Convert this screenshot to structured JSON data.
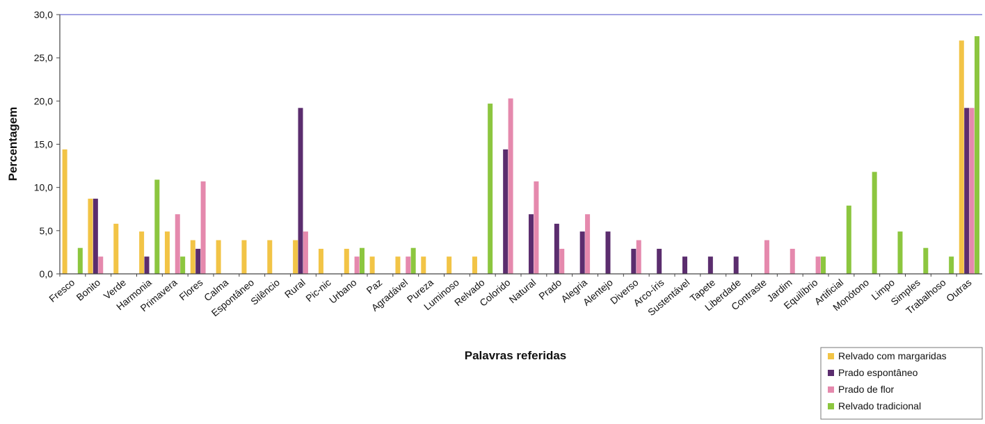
{
  "chart_data": {
    "type": "bar",
    "xlabel": "Palavras referidas",
    "ylabel": "Percentagem",
    "ylim": [
      0,
      30
    ],
    "yticks": [
      "0,0",
      "5,0",
      "10,0",
      "15,0",
      "20,0",
      "25,0",
      "30,0"
    ],
    "legend_position": "bottom-right",
    "categories": [
      "Fresco",
      "Bonito",
      "Verde",
      "Harmonia",
      "Primavera",
      "Flores",
      "Calma",
      "Espontâneo",
      "Silêncio",
      "Rural",
      "Pic-nic",
      "Urbano",
      "Paz",
      "Agradável",
      "Pureza",
      "Luminoso",
      "Relvado",
      "Colorido",
      "Natural",
      "Prado",
      "Alegria",
      "Alentejo",
      "Diverso",
      "Arco-íris",
      "Sustentável",
      "Tapete",
      "Liberdade",
      "Contraste",
      "Jardim",
      "Equilíbrio",
      "Artificial",
      "Monótono",
      "Limpo",
      "Simples",
      "Trabalhoso",
      "Outras"
    ],
    "series": [
      {
        "name": "Relvado com margaridas",
        "color": "#f2c446",
        "values": [
          14.4,
          8.7,
          5.8,
          4.9,
          4.9,
          3.9,
          3.9,
          3.9,
          3.9,
          3.9,
          2.9,
          2.9,
          2.0,
          2.0,
          2.0,
          2.0,
          2.0,
          0,
          0,
          0,
          0,
          0,
          0,
          0,
          0,
          0,
          0,
          0,
          0,
          0,
          0,
          0,
          0,
          0,
          0,
          27.0
        ]
      },
      {
        "name": "Prado espontâneo",
        "color": "#5b2d6e",
        "values": [
          0,
          8.7,
          0,
          2.0,
          0,
          2.9,
          0,
          0,
          0,
          19.2,
          0,
          0,
          0,
          0,
          0,
          0,
          0,
          14.4,
          6.9,
          5.8,
          4.9,
          4.9,
          2.9,
          2.9,
          2.0,
          2.0,
          2.0,
          0,
          0,
          0,
          0,
          0,
          0,
          0,
          0,
          19.2
        ]
      },
      {
        "name": "Prado de flor",
        "color": "#e589ad",
        "values": [
          0,
          2.0,
          0,
          0,
          6.9,
          10.7,
          0,
          0,
          0,
          4.9,
          0,
          2.0,
          0,
          2.0,
          0,
          0,
          0,
          20.3,
          10.7,
          2.9,
          6.9,
          0,
          3.9,
          0,
          0,
          0,
          0,
          3.9,
          2.9,
          2.0,
          0,
          0,
          0,
          0,
          0,
          19.2
        ]
      },
      {
        "name": "Relvado tradicional",
        "color": "#8cc63f",
        "values": [
          3.0,
          0,
          0,
          10.9,
          2.0,
          0,
          0,
          0,
          0,
          0,
          0,
          3.0,
          0,
          3.0,
          0,
          0,
          19.7,
          0,
          0,
          0,
          0,
          0,
          0,
          0,
          0,
          0,
          0,
          0,
          0,
          2.0,
          7.9,
          11.8,
          4.9,
          3.0,
          2.0,
          27.5
        ]
      }
    ]
  }
}
